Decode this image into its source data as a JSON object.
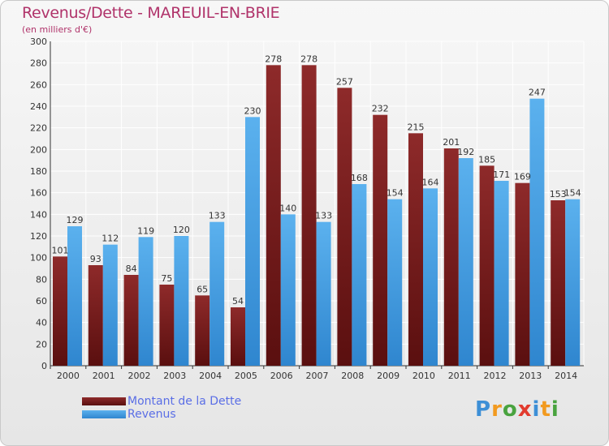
{
  "header": {
    "title": "Revenus/Dette - MAREUIL-EN-BRIE",
    "subtitle": "(en milliers d'€)"
  },
  "logo": {
    "text": "Proxiti",
    "colors": [
      "#3d8fd6",
      "#f29a1f",
      "#49a33f",
      "#e23b2e",
      "#3d8fd6",
      "#f29a1f",
      "#49a33f"
    ]
  },
  "colors": {
    "dette": "#7d1c1c",
    "revenus": "#4aa3e6",
    "label": "#333333"
  },
  "chart_data": {
    "type": "bar",
    "title": "Revenus/Dette - MAREUIL-EN-BRIE",
    "subtitle": "(en milliers d'€)",
    "xlabel": "",
    "ylabel": "",
    "ylim": [
      0,
      300
    ],
    "ytick_step": 20,
    "grid": true,
    "legend_position": "bottom-left",
    "categories": [
      "2000",
      "2001",
      "2002",
      "2003",
      "2004",
      "2005",
      "2006",
      "2007",
      "2008",
      "2009",
      "2010",
      "2011",
      "2012",
      "2013",
      "2014"
    ],
    "series": [
      {
        "name": "Montant de la Dette",
        "color": "#7d1c1c",
        "values": [
          101,
          93,
          84,
          75,
          65,
          54,
          278,
          278,
          257,
          232,
          215,
          201,
          185,
          169,
          153
        ]
      },
      {
        "name": "Revenus",
        "color": "#4aa3e6",
        "values": [
          129,
          112,
          119,
          120,
          133,
          230,
          140,
          133,
          168,
          154,
          164,
          192,
          171,
          247,
          154
        ]
      }
    ]
  }
}
